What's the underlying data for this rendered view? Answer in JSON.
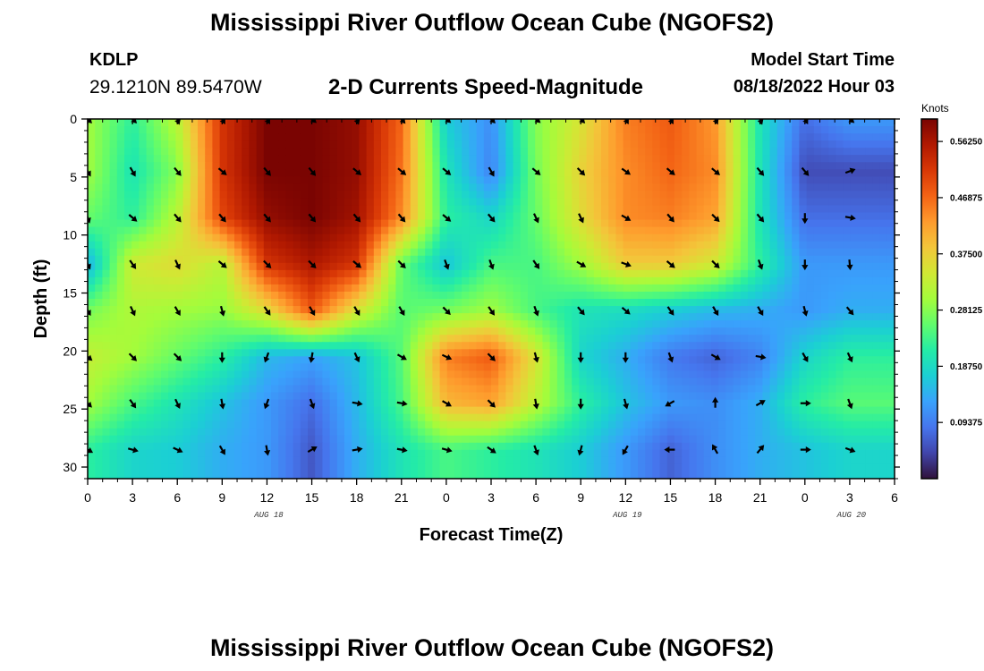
{
  "header": {
    "main_title": "Mississippi River Outflow Ocean Cube (NGOFS2)",
    "station_id": "KDLP",
    "station_coords": "29.1210N  89.5470W",
    "model_start_label": "Model Start Time",
    "model_start_time": "08/18/2022 Hour 03"
  },
  "footer": {
    "second_title": "Mississippi River Outflow Ocean Cube (NGOFS2)"
  },
  "chart_data": {
    "type": "heatmap",
    "title": "2-D Currents Speed-Magnitude",
    "xlabel": "Forecast Time(Z)",
    "ylabel": "Depth (ft)",
    "x_tick_labels": [
      "0",
      "3",
      "6",
      "9",
      "12",
      "15",
      "18",
      "21",
      "0",
      "3",
      "6",
      "9",
      "12",
      "15",
      "18",
      "21",
      "0",
      "3",
      "6"
    ],
    "x_tick_hours": [
      0,
      3,
      6,
      9,
      12,
      15,
      18,
      21,
      24,
      27,
      30,
      33,
      36,
      39,
      42,
      45,
      48,
      51,
      54
    ],
    "date_labels": [
      {
        "text": "AUG 18",
        "hour": 12
      },
      {
        "text": "AUG 19",
        "hour": 36
      },
      {
        "text": "AUG 20",
        "hour": 51
      }
    ],
    "y_tick_labels": [
      "0",
      "5",
      "10",
      "15",
      "20",
      "25",
      "30"
    ],
    "y_ticks": [
      0,
      5,
      10,
      15,
      20,
      25,
      30
    ],
    "xlim": [
      0,
      54
    ],
    "ylim": [
      0,
      31
    ],
    "y_inverted": true,
    "colorbar": {
      "unit_label": "Knots",
      "range": [
        0,
        0.6
      ],
      "tick_values": [
        0.5625,
        0.46875,
        0.375,
        0.28125,
        0.1875,
        0.09375
      ],
      "tick_labels": [
        "0.56250",
        "0.46875",
        "0.37500",
        "0.28125",
        "0.18750",
        "0.09375"
      ],
      "colormap": [
        "#30123b",
        "#4145ab",
        "#4675ed",
        "#39a2fc",
        "#1bcfd4",
        "#24eca6",
        "#61fc6c",
        "#a4fc3b",
        "#d1e834",
        "#f3c63a",
        "#fe9b2d",
        "#f36315",
        "#d93806",
        "#b11901",
        "#7a0402"
      ]
    },
    "depth_levels": [
      0,
      4.5,
      8.5,
      12.5,
      16.5,
      20.5,
      24.5,
      28.5
    ],
    "arrow_hours": [
      0,
      3,
      6,
      9,
      12,
      15,
      18,
      21,
      24,
      27,
      30,
      33,
      36,
      39,
      42,
      45,
      48,
      51
    ],
    "speed_grid": [
      [
        0.3,
        0.22,
        0.32,
        0.52,
        0.6,
        0.6,
        0.58,
        0.47,
        0.17,
        0.11,
        0.28,
        0.35,
        0.45,
        0.48,
        0.43,
        0.2,
        0.08,
        0.12
      ],
      [
        0.3,
        0.2,
        0.28,
        0.52,
        0.6,
        0.6,
        0.58,
        0.46,
        0.2,
        0.1,
        0.27,
        0.37,
        0.44,
        0.47,
        0.44,
        0.2,
        0.05,
        0.05
      ],
      [
        0.26,
        0.22,
        0.32,
        0.5,
        0.58,
        0.6,
        0.57,
        0.44,
        0.22,
        0.18,
        0.26,
        0.36,
        0.44,
        0.45,
        0.42,
        0.2,
        0.08,
        0.08
      ],
      [
        0.14,
        0.34,
        0.36,
        0.32,
        0.52,
        0.56,
        0.52,
        0.26,
        0.16,
        0.24,
        0.24,
        0.3,
        0.38,
        0.38,
        0.34,
        0.22,
        0.12,
        0.12
      ],
      [
        0.27,
        0.31,
        0.3,
        0.29,
        0.36,
        0.48,
        0.35,
        0.25,
        0.27,
        0.3,
        0.24,
        0.2,
        0.19,
        0.17,
        0.15,
        0.14,
        0.12,
        0.14
      ],
      [
        0.33,
        0.3,
        0.26,
        0.22,
        0.15,
        0.13,
        0.16,
        0.25,
        0.45,
        0.48,
        0.35,
        0.18,
        0.14,
        0.09,
        0.07,
        0.1,
        0.18,
        0.22
      ],
      [
        0.3,
        0.24,
        0.2,
        0.16,
        0.12,
        0.08,
        0.15,
        0.24,
        0.4,
        0.42,
        0.32,
        0.22,
        0.16,
        0.12,
        0.11,
        0.14,
        0.22,
        0.25
      ],
      [
        0.22,
        0.18,
        0.17,
        0.14,
        0.12,
        0.06,
        0.14,
        0.2,
        0.24,
        0.22,
        0.2,
        0.17,
        0.12,
        0.07,
        0.11,
        0.14,
        0.16,
        0.18
      ]
    ],
    "direction_grid_deg": [
      [
        135,
        135,
        160,
        150,
        150,
        130,
        160,
        140,
        130,
        135,
        130,
        135,
        150,
        150,
        155,
        160,
        150,
        130
      ],
      [
        150,
        150,
        140,
        130,
        140,
        140,
        130,
        130,
        130,
        150,
        130,
        135,
        125,
        130,
        130,
        140,
        140,
        70
      ],
      [
        160,
        130,
        140,
        140,
        140,
        140,
        140,
        140,
        130,
        140,
        155,
        155,
        120,
        140,
        135,
        140,
        180,
        100
      ],
      [
        155,
        145,
        155,
        130,
        135,
        135,
        130,
        135,
        160,
        160,
        145,
        120,
        110,
        130,
        135,
        160,
        180,
        175
      ],
      [
        150,
        155,
        150,
        165,
        145,
        150,
        150,
        150,
        135,
        145,
        160,
        140,
        130,
        145,
        150,
        150,
        165,
        140
      ],
      [
        130,
        135,
        135,
        180,
        200,
        190,
        155,
        120,
        115,
        135,
        165,
        180,
        180,
        160,
        120,
        100,
        150,
        155
      ],
      [
        135,
        145,
        155,
        170,
        200,
        160,
        100,
        100,
        120,
        135,
        170,
        180,
        165,
        240,
        0,
        60,
        90,
        160
      ],
      [
        120,
        105,
        115,
        150,
        170,
        60,
        80,
        100,
        105,
        125,
        160,
        195,
        210,
        270,
        330,
        40,
        90,
        110
      ]
    ]
  }
}
